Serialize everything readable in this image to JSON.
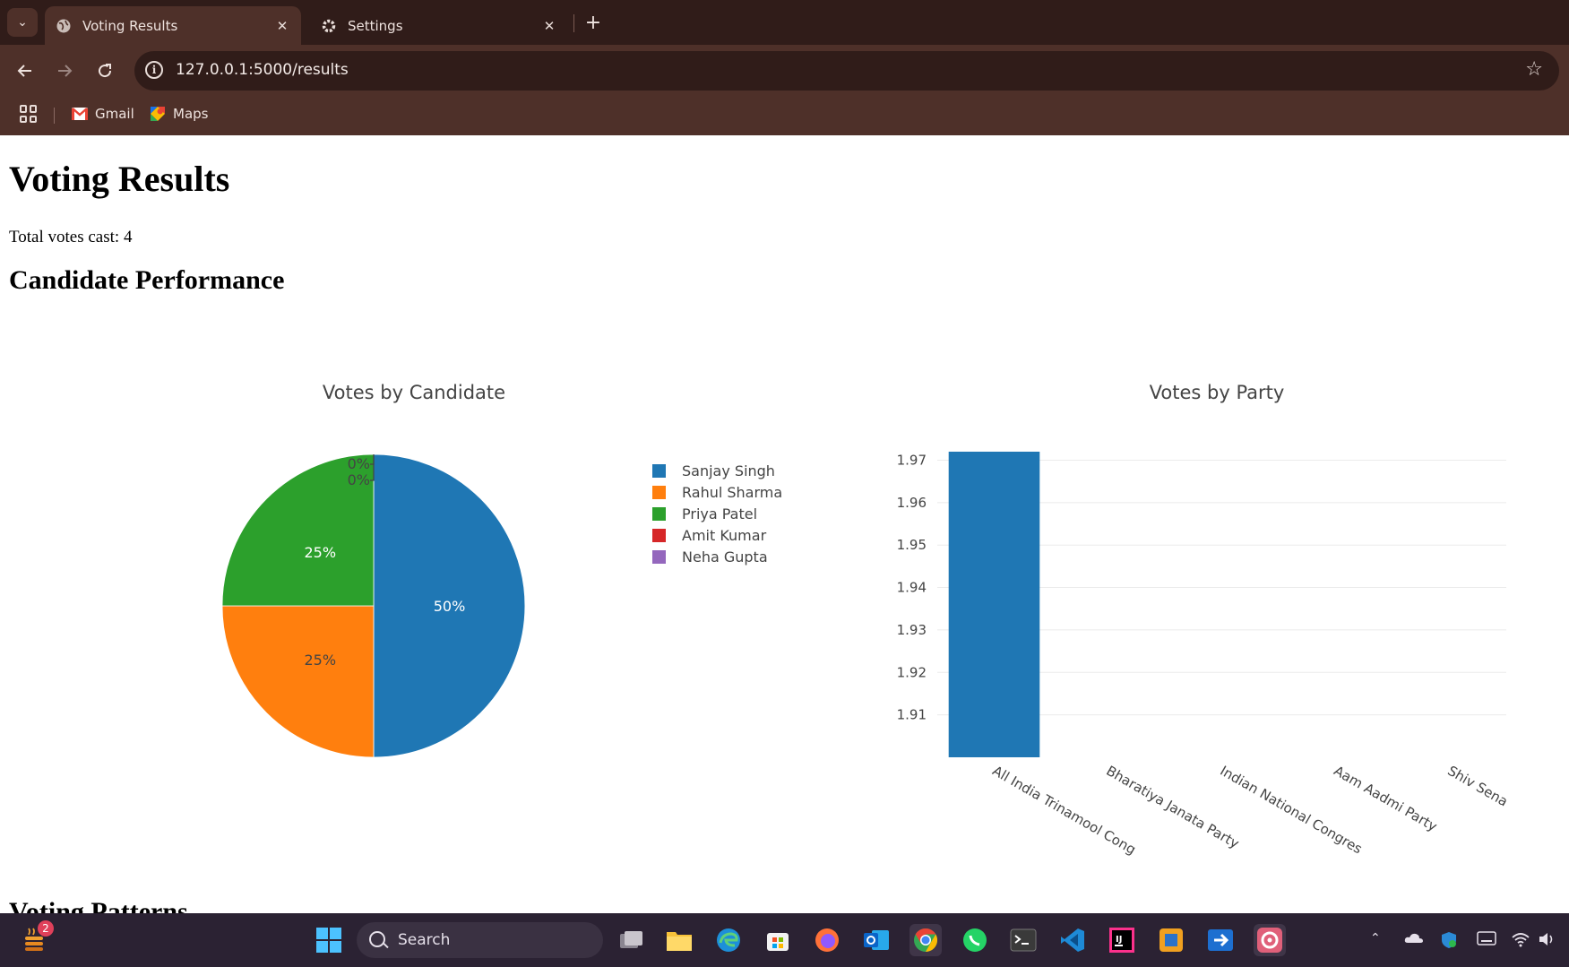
{
  "browser": {
    "tabs": [
      {
        "label": "Voting Results",
        "active": true,
        "icon": "globe-icon"
      },
      {
        "label": "Settings",
        "active": false,
        "icon": "gear-icon"
      }
    ],
    "url": "127.0.0.1:5000/results",
    "bookmarks": [
      {
        "label": "Gmail",
        "icon": "gmail-icon"
      },
      {
        "label": "Maps",
        "icon": "maps-icon"
      }
    ]
  },
  "page": {
    "heading": "Voting Results",
    "total_votes_text": "Total votes cast: 4",
    "section_performance": "Candidate Performance",
    "section_patterns": "Voting Patterns"
  },
  "chart_data": [
    {
      "type": "pie",
      "title": "Votes by Candidate",
      "labels": [
        "Sanjay Singh",
        "Rahul Sharma",
        "Priya Patel",
        "Amit Kumar",
        "Neha Gupta"
      ],
      "values": [
        2,
        1,
        1,
        0,
        0
      ],
      "percent_labels": [
        "50%",
        "25%",
        "25%",
        "0%",
        "0%"
      ],
      "colors": [
        "#1f77b4",
        "#ff7f0e",
        "#2ca02c",
        "#d62728",
        "#9467bd"
      ],
      "legend_position": "right"
    },
    {
      "type": "bar",
      "title": "Votes by Party",
      "categories": [
        "All India Trinamool Cong",
        "Bharatiya Janata Party",
        "Indian National Congres",
        "Aam Aadmi Party",
        "Shiv Sena"
      ],
      "values": [
        2,
        0,
        0,
        0,
        0
      ],
      "ylim": [
        1.9,
        1.972
      ],
      "yticks": [
        "1.91",
        "1.92",
        "1.93",
        "1.94",
        "1.95",
        "1.96",
        "1.97"
      ],
      "color": "#1f77b4",
      "grid": true
    }
  ],
  "taskbar": {
    "search_label": "Search",
    "notification_count": "2"
  }
}
